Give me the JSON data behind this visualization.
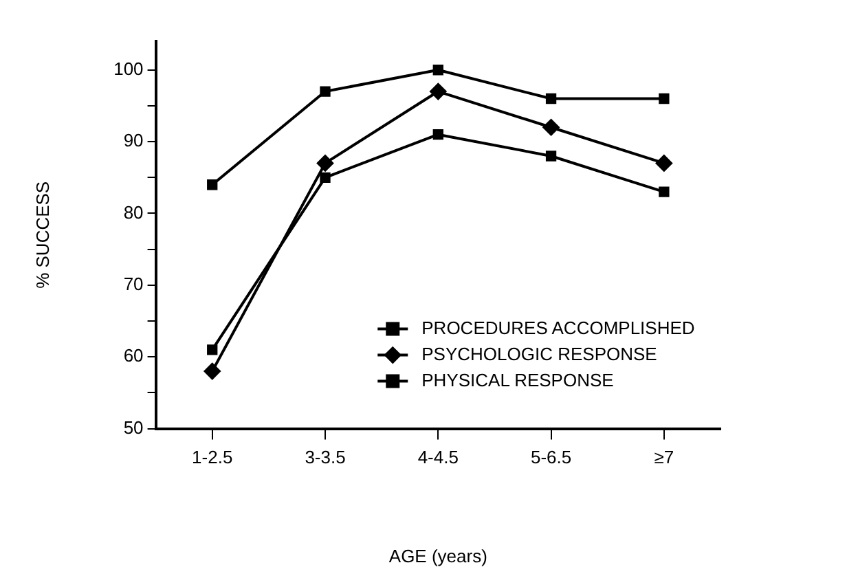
{
  "chart_data": {
    "type": "line",
    "xlabel": "AGE (years)",
    "ylabel": "% SUCCESS",
    "categories": [
      "1-2.5",
      "3-3.5",
      "4-4.5",
      "5-6.5",
      "≥7"
    ],
    "ylim": [
      50,
      104
    ],
    "yticks": [
      50,
      {
        "value": 55,
        "label": null
      },
      60,
      {
        "value": 65,
        "label": null
      },
      70,
      {
        "value": 75,
        "label": null
      },
      80,
      {
        "value": 85,
        "label": null
      },
      90,
      {
        "value": 95,
        "label": null
      },
      100
    ],
    "grid": false,
    "legend": "bottom right",
    "line_style": "solid",
    "series": [
      {
        "name": "PROCEDURES ACCOMPLISHED",
        "color": "#000000",
        "marker": "square",
        "values": [
          84,
          97,
          100,
          96,
          96
        ]
      },
      {
        "name": "PSYCHOLOGIC RESPONSE",
        "color": "#000000",
        "marker": "diamond",
        "values": [
          58,
          87,
          97,
          92,
          87
        ]
      },
      {
        "name": "PHYSICAL RESPONSE",
        "color": "#000000",
        "marker": "square",
        "values": [
          61,
          85,
          91,
          88,
          83
        ]
      }
    ]
  }
}
